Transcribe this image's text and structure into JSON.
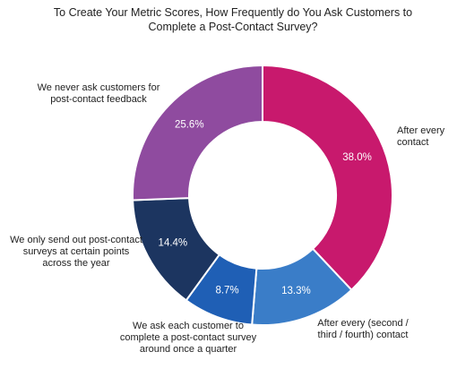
{
  "chart_data": {
    "type": "donut",
    "title": "To Create Your Metric Scores, How Frequently do You Ask Customers to Complete a Post-Contact Survey?",
    "categories": [
      "After every contact",
      "After every (second / third / fourth) contact",
      "We ask each customer to complete a post-contact survey around once a quarter",
      "We only send out post-contact surveys at certain points across the year",
      "We never ask customers for post-contact feedback"
    ],
    "values": [
      38.0,
      13.3,
      8.7,
      14.4,
      25.6
    ],
    "value_labels": [
      "38.0%",
      "13.3%",
      "8.7%",
      "14.4%",
      "25.6%"
    ],
    "colors": [
      "#c8196d",
      "#3a7dc8",
      "#1f5fb5",
      "#1c3560",
      "#8f4b9f"
    ]
  }
}
